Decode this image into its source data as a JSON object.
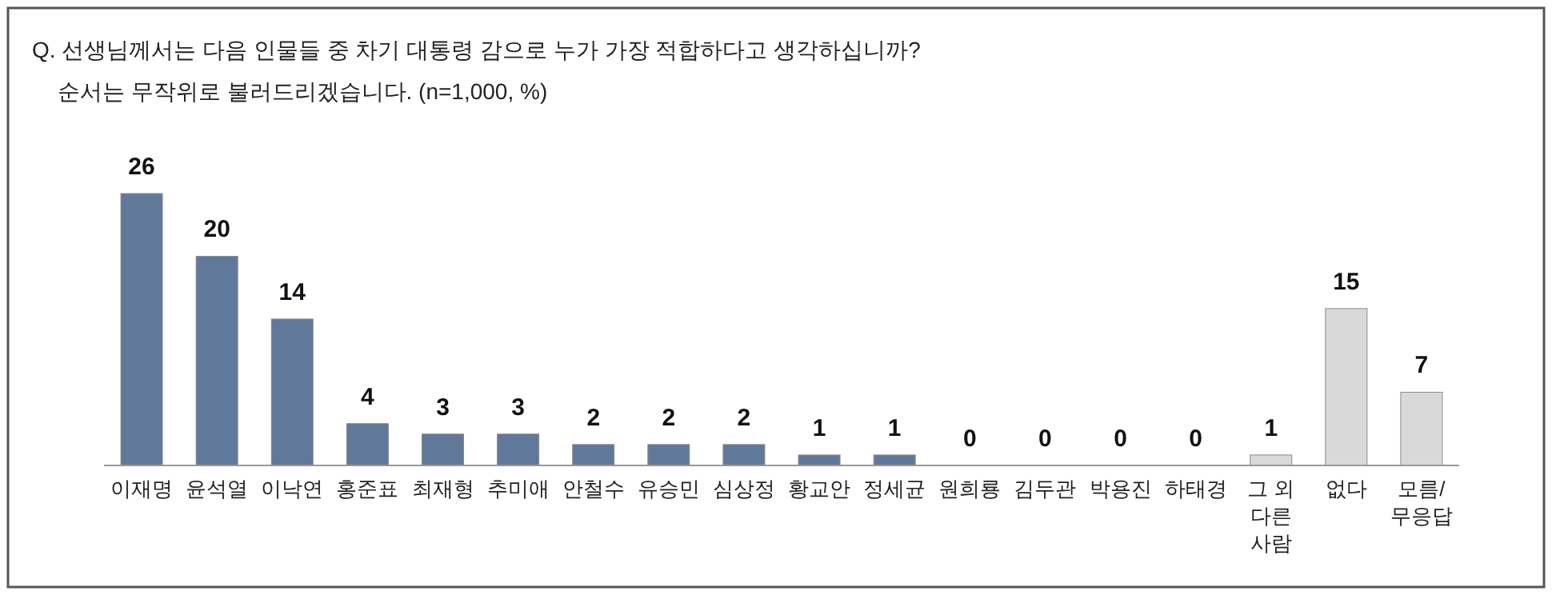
{
  "chart_data": {
    "type": "bar",
    "title": "Q. 선생님께서는 다음 인물들 중 차기 대통령 감으로 누가 가장 적합하다고 생각하십니까?",
    "subtitle": "순서는 무작위로 불러드리겠습니다. (n=1,000, %)",
    "categories": [
      "이재명",
      "윤석열",
      "이낙연",
      "홍준표",
      "최재형",
      "추미애",
      "안철수",
      "유승민",
      "심상정",
      "황교안",
      "정세균",
      "원희룡",
      "김두관",
      "박용진",
      "하태경",
      "그 외 다른 사람",
      "없다",
      "모름/무응답"
    ],
    "values": [
      26,
      20,
      14,
      4,
      3,
      3,
      2,
      2,
      2,
      1,
      1,
      0,
      0,
      0,
      0,
      1,
      15,
      7
    ],
    "colors": [
      "#60799a",
      "#60799a",
      "#60799a",
      "#60799a",
      "#60799a",
      "#60799a",
      "#60799a",
      "#60799a",
      "#60799a",
      "#60799a",
      "#60799a",
      "#60799a",
      "#60799a",
      "#60799a",
      "#60799a",
      "#d9d9d9",
      "#d9d9d9",
      "#d9d9d9"
    ],
    "data_labels": true
  }
}
